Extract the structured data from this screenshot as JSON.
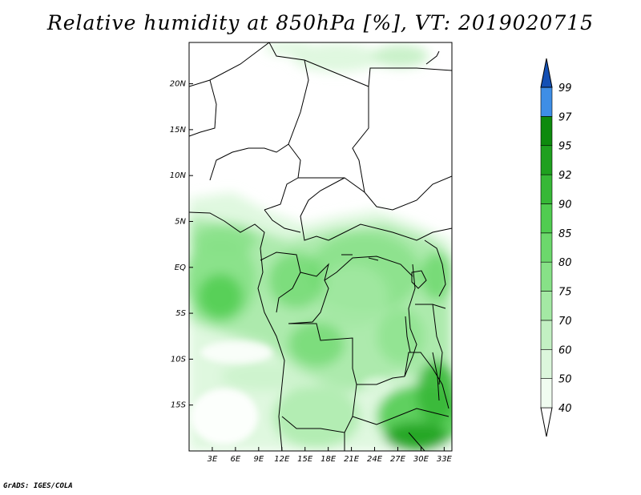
{
  "title": "Relative humidity at 850hPa [%], VT: 2019020715",
  "credit": "GrADS: IGES/COLA",
  "map": {
    "lon_range": [
      0,
      34
    ],
    "lat_range": [
      -20,
      24.5
    ],
    "x_ticks": [
      {
        "value": 3,
        "label": "3E"
      },
      {
        "value": 6,
        "label": "6E"
      },
      {
        "value": 9,
        "label": "9E"
      },
      {
        "value": 12,
        "label": "12E"
      },
      {
        "value": 15,
        "label": "15E"
      },
      {
        "value": 18,
        "label": "18E"
      },
      {
        "value": 21,
        "label": "21E"
      },
      {
        "value": 24,
        "label": "24E"
      },
      {
        "value": 27,
        "label": "27E"
      },
      {
        "value": 30,
        "label": "30E"
      },
      {
        "value": 33,
        "label": "33E"
      }
    ],
    "y_ticks": [
      {
        "value": 20,
        "label": "20N"
      },
      {
        "value": 15,
        "label": "15N"
      },
      {
        "value": 10,
        "label": "10N"
      },
      {
        "value": 5,
        "label": "5N"
      },
      {
        "value": 0,
        "label": "EQ"
      },
      {
        "value": -5,
        "label": "5S"
      },
      {
        "value": -10,
        "label": "10S"
      },
      {
        "value": -15,
        "label": "15S"
      }
    ]
  },
  "colorbar": {
    "levels": [
      {
        "label": "40",
        "color": "#f0fcf0"
      },
      {
        "label": "50",
        "color": "#dcf7dc"
      },
      {
        "label": "60",
        "color": "#c3f0c3"
      },
      {
        "label": "70",
        "color": "#a4e9a4"
      },
      {
        "label": "75",
        "color": "#87e187"
      },
      {
        "label": "80",
        "color": "#6cd86c"
      },
      {
        "label": "85",
        "color": "#50cc50"
      },
      {
        "label": "90",
        "color": "#37b837"
      },
      {
        "label": "92",
        "color": "#1fa01f"
      },
      {
        "label": "95",
        "color": "#0e8a0e"
      },
      {
        "label": "97",
        "color": "#3e8ee6"
      },
      {
        "label": "99",
        "color": "#1e64c8"
      }
    ],
    "top_color": "#1450b4",
    "bottom_color": "#ffffff"
  }
}
